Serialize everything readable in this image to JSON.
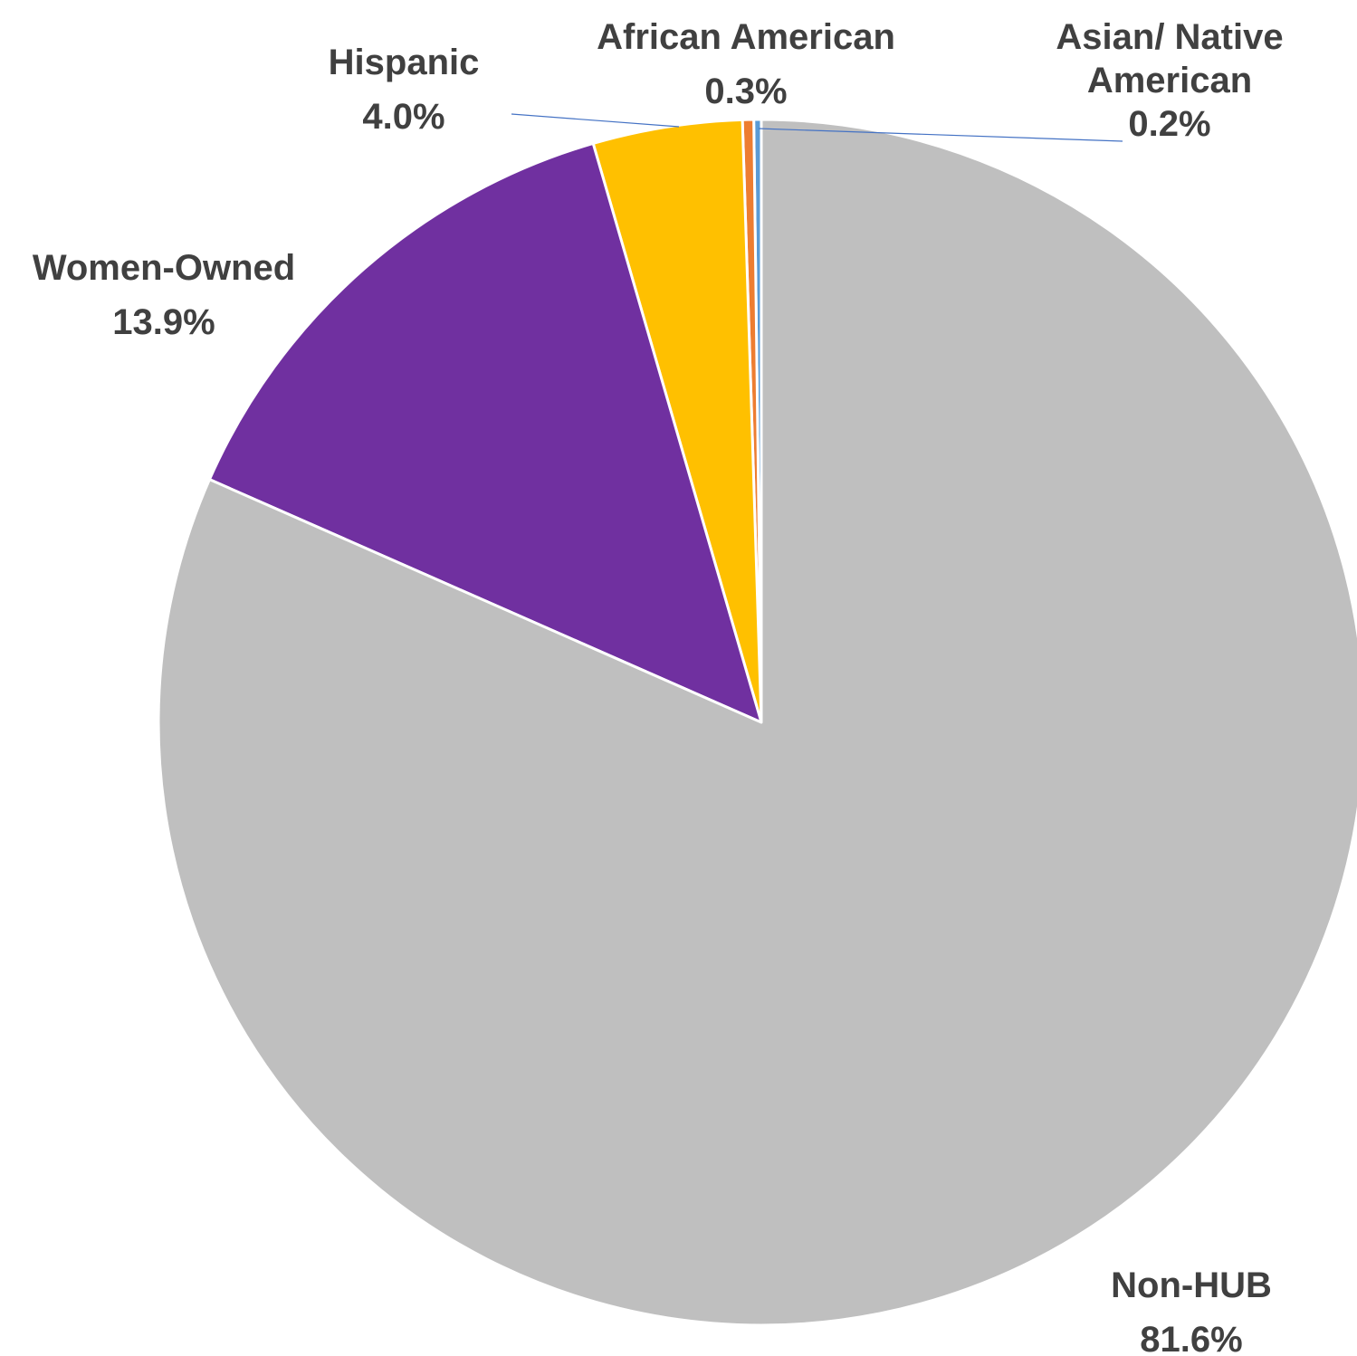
{
  "chart_data": {
    "type": "pie",
    "title": "",
    "start_angle_deg": 0,
    "direction": "counterclockwise",
    "slices": [
      {
        "label": "Asian/ Native American",
        "label_lines": [
          "Asian/ Native",
          "American",
          "0.2%"
        ],
        "value": 0.2,
        "value_text": "0.2%",
        "color": "#5B9BD5"
      },
      {
        "label": "African American",
        "label_lines": [
          "African American",
          "0.3%"
        ],
        "value": 0.3,
        "value_text": "0.3%",
        "color": "#ED7D31"
      },
      {
        "label": "Hispanic",
        "label_lines": [
          "Hispanic",
          "4.0%"
        ],
        "value": 4.0,
        "value_text": "4.0%",
        "color": "#FFC000"
      },
      {
        "label": "Women-Owned",
        "label_lines": [
          "Women-Owned",
          "13.9%"
        ],
        "value": 13.9,
        "value_text": "13.9%",
        "color": "#7030A0"
      },
      {
        "label": "Non-HUB",
        "label_lines": [
          "Non-HUB",
          "81.6%"
        ],
        "value": 81.6,
        "value_text": "81.6%",
        "color": "#BFBFBF"
      }
    ],
    "leader_line_color": "#4472C4",
    "label_color": "#404040",
    "slice_border_color": "#FFFFFF"
  }
}
